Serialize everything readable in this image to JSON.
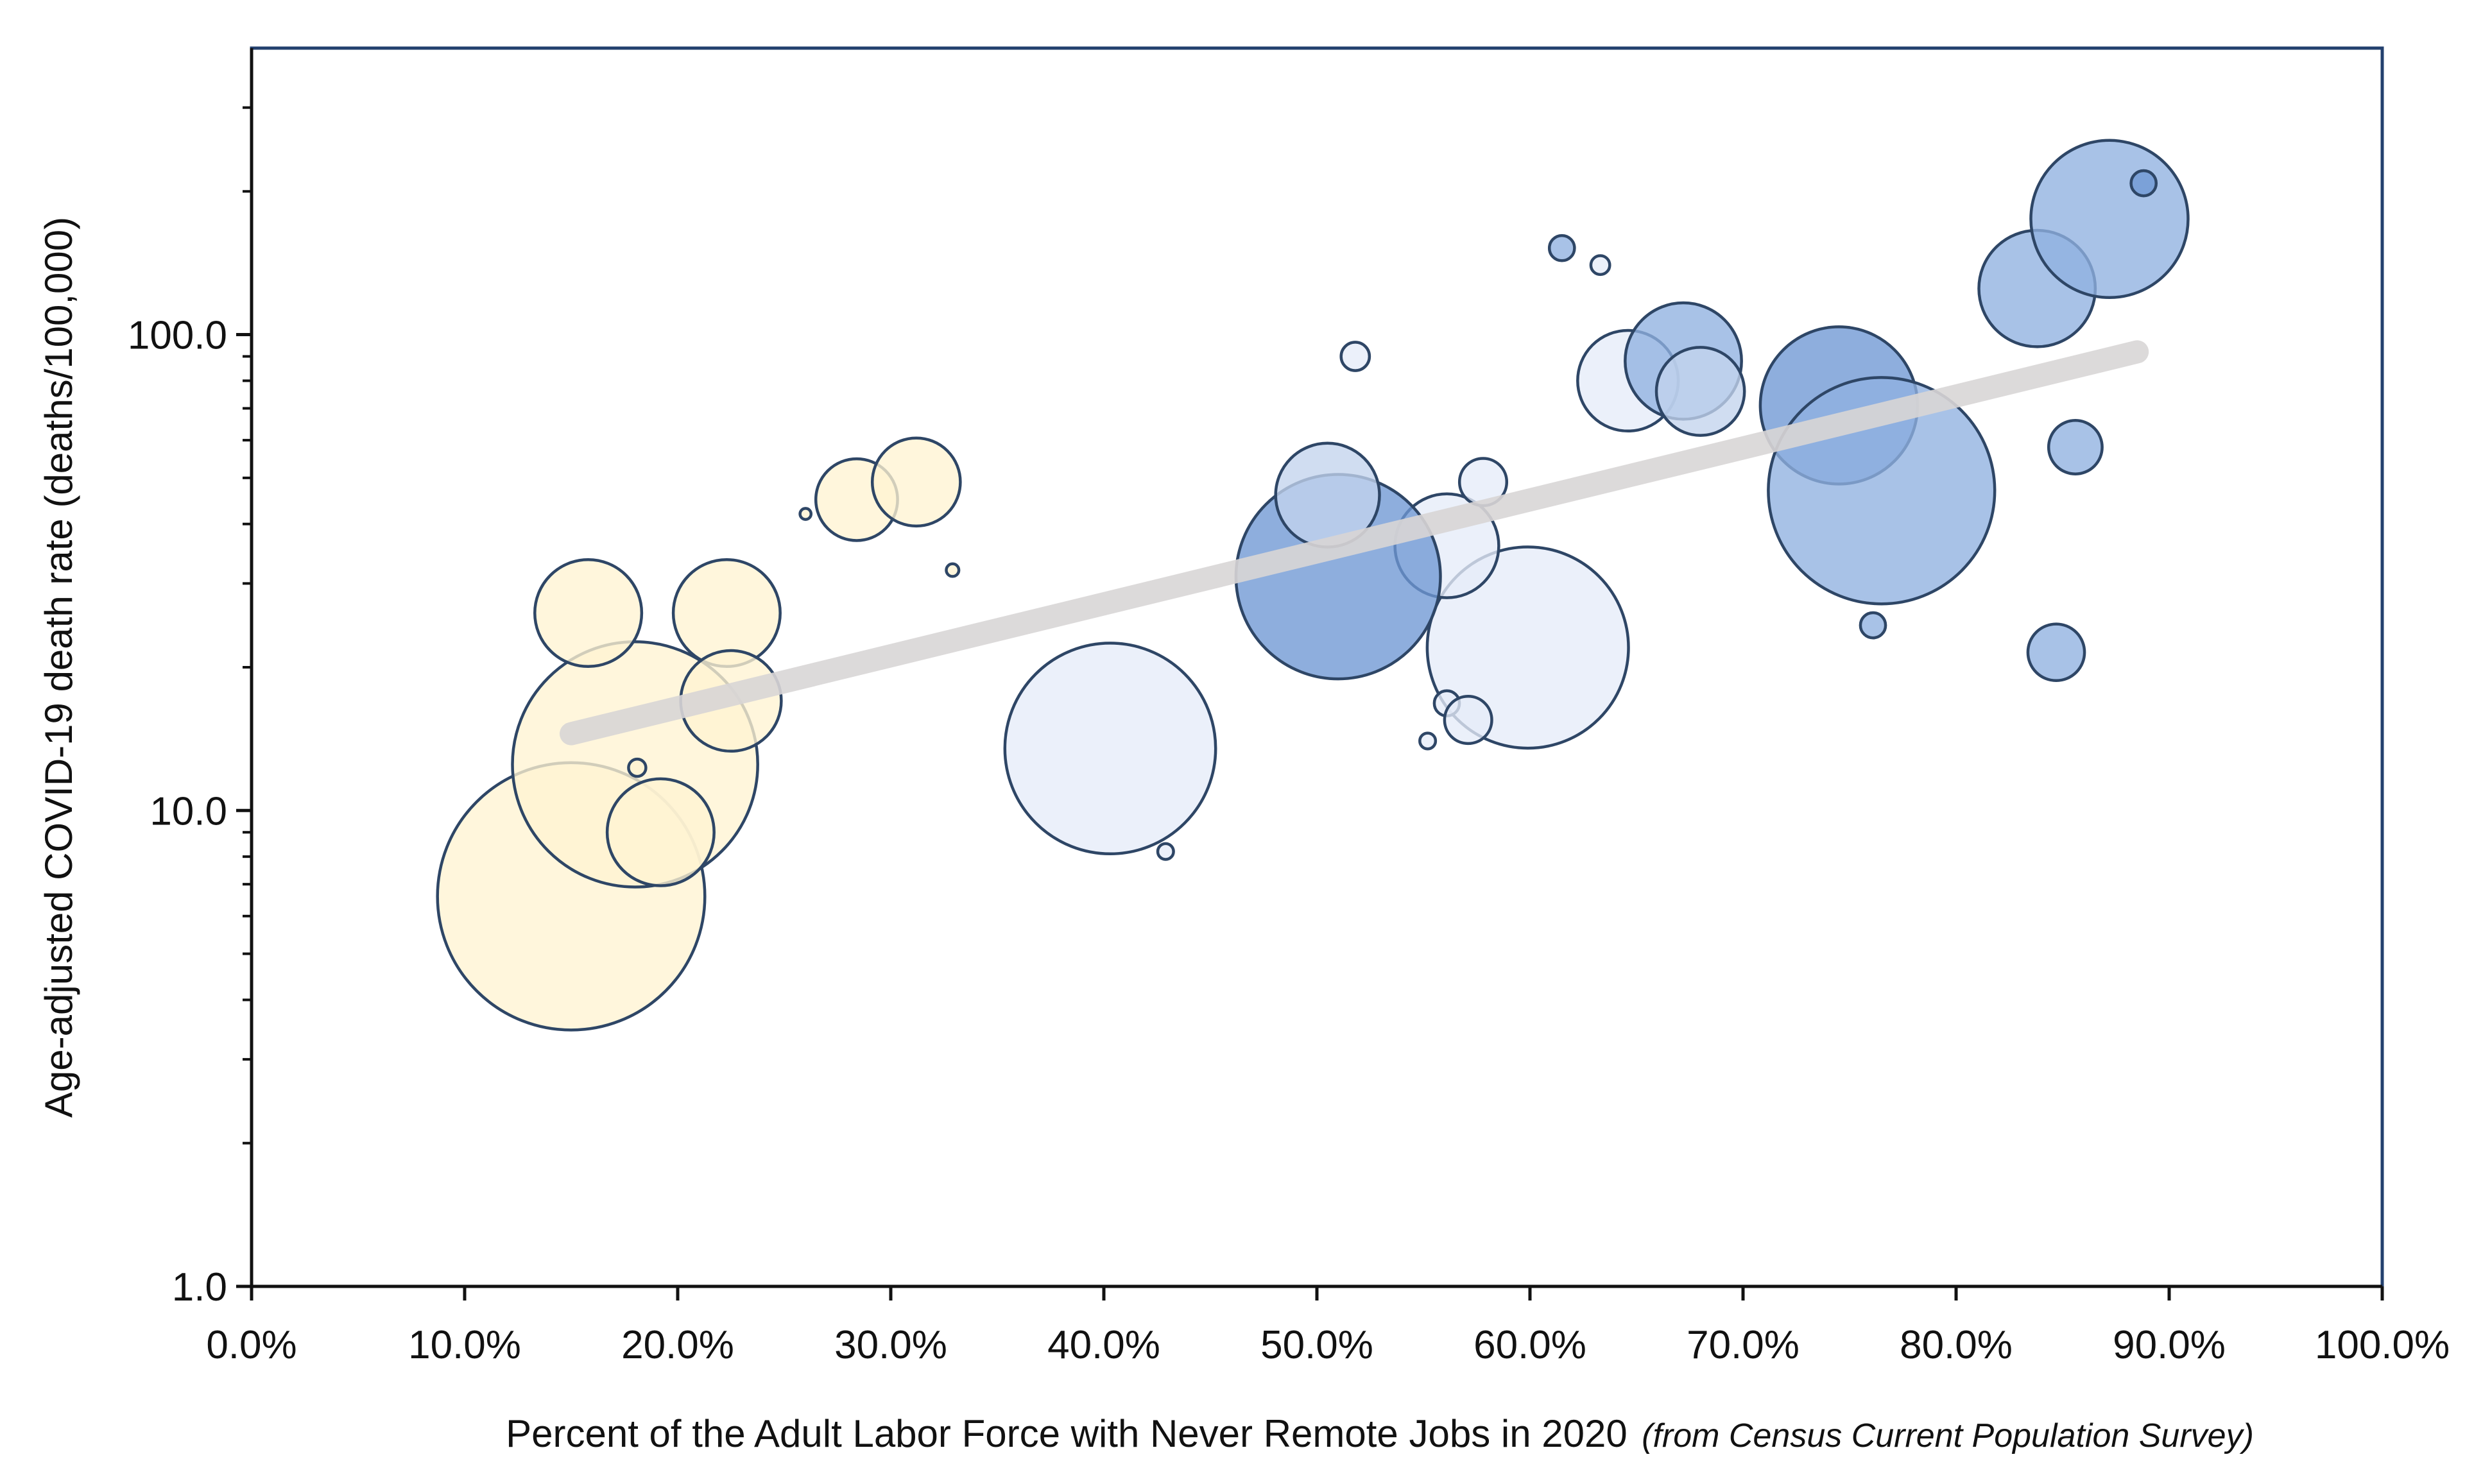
{
  "chart_data": {
    "type": "scatter",
    "subtype": "bubble",
    "title": "",
    "xlabel": "Percent of the Adult Labor Force with Never Remote Jobs in 2020",
    "xlabel_note": "(from Census Current Population Survey)",
    "ylabel": "Age-adjusted COVID-19 death rate (deaths/100,000)",
    "xlim": [
      0,
      100
    ],
    "ylim": [
      1,
      400
    ],
    "yscale": "log",
    "grid": false,
    "legend": "none",
    "x_ticks": [
      {
        "value": 0,
        "label": "0.0%"
      },
      {
        "value": 10,
        "label": "10.0%"
      },
      {
        "value": 20,
        "label": "20.0%"
      },
      {
        "value": 30,
        "label": "30.0%"
      },
      {
        "value": 40,
        "label": "40.0%"
      },
      {
        "value": 50,
        "label": "50.0%"
      },
      {
        "value": 60,
        "label": "60.0%"
      },
      {
        "value": 70,
        "label": "70.0%"
      },
      {
        "value": 80,
        "label": "80.0%"
      },
      {
        "value": 90,
        "label": "90.0%"
      },
      {
        "value": 100,
        "label": "100.0%"
      }
    ],
    "y_ticks": [
      {
        "value": 1,
        "label": "1.0"
      },
      {
        "value": 10,
        "label": "10.0"
      },
      {
        "value": 100,
        "label": "100.0"
      }
    ],
    "y_minor_ticks": [
      2,
      3,
      4,
      5,
      6,
      7,
      8,
      9,
      20,
      30,
      40,
      50,
      60,
      70,
      80,
      90,
      200,
      300
    ],
    "trendline": {
      "x": [
        15,
        88.5
      ],
      "y": [
        14.5,
        92
      ],
      "color": "#d9d6d6"
    },
    "colors": {
      "yellow": "#fff3d2",
      "pale": "#e6ecf8",
      "light": "#c3d3ed",
      "mid": "#8fb1e0",
      "dark": "#6e97d4",
      "stroke": "#2e4666",
      "axis_frame": "#23406e"
    },
    "points": [
      {
        "x": 15.0,
        "y": 6.6,
        "size": 85,
        "color": "yellow"
      },
      {
        "x": 18.0,
        "y": 12.5,
        "size": 78,
        "color": "yellow"
      },
      {
        "x": 15.8,
        "y": 26.0,
        "size": 34,
        "color": "yellow"
      },
      {
        "x": 22.3,
        "y": 26.0,
        "size": 34,
        "color": "yellow"
      },
      {
        "x": 22.5,
        "y": 17.0,
        "size": 32,
        "color": "yellow"
      },
      {
        "x": 19.2,
        "y": 9.0,
        "size": 34,
        "color": "yellow"
      },
      {
        "x": 18.1,
        "y": 12.3,
        "size": 5.5,
        "color": "yellow"
      },
      {
        "x": 28.4,
        "y": 45.0,
        "size": 26,
        "color": "yellow"
      },
      {
        "x": 31.2,
        "y": 49.0,
        "size": 28,
        "color": "yellow"
      },
      {
        "x": 26.0,
        "y": 42.0,
        "size": 3.5,
        "color": "yellow"
      },
      {
        "x": 32.9,
        "y": 32.0,
        "size": 4,
        "color": "yellow"
      },
      {
        "x": 40.3,
        "y": 13.5,
        "size": 67,
        "color": "pale"
      },
      {
        "x": 42.9,
        "y": 8.2,
        "size": 5,
        "color": "pale"
      },
      {
        "x": 59.9,
        "y": 22.0,
        "size": 64,
        "color": "pale"
      },
      {
        "x": 56.1,
        "y": 36.0,
        "size": 33,
        "color": "pale"
      },
      {
        "x": 57.8,
        "y": 49.0,
        "size": 15,
        "color": "pale"
      },
      {
        "x": 56.1,
        "y": 16.8,
        "size": 8,
        "color": "pale"
      },
      {
        "x": 57.1,
        "y": 15.5,
        "size": 15,
        "color": "pale"
      },
      {
        "x": 55.2,
        "y": 14.0,
        "size": 5,
        "color": "pale"
      },
      {
        "x": 51.8,
        "y": 90.0,
        "size": 9,
        "color": "pale"
      },
      {
        "x": 64.6,
        "y": 80.0,
        "size": 32,
        "color": "pale"
      },
      {
        "x": 63.3,
        "y": 140.0,
        "size": 6,
        "color": "pale"
      },
      {
        "x": 51.0,
        "y": 31.0,
        "size": 65,
        "color": "dark"
      },
      {
        "x": 50.5,
        "y": 46.0,
        "size": 33,
        "color": "light"
      },
      {
        "x": 61.5,
        "y": 152.0,
        "size": 8,
        "color": "mid"
      },
      {
        "x": 67.2,
        "y": 88.0,
        "size": 37,
        "color": "mid"
      },
      {
        "x": 68.0,
        "y": 76.0,
        "size": 28,
        "color": "light"
      },
      {
        "x": 74.5,
        "y": 71.0,
        "size": 50,
        "color": "dark"
      },
      {
        "x": 76.5,
        "y": 47.0,
        "size": 72,
        "color": "mid"
      },
      {
        "x": 76.1,
        "y": 24.5,
        "size": 8,
        "color": "mid"
      },
      {
        "x": 83.8,
        "y": 125.0,
        "size": 37,
        "color": "mid"
      },
      {
        "x": 87.2,
        "y": 175.0,
        "size": 50,
        "color": "mid"
      },
      {
        "x": 88.8,
        "y": 208.0,
        "size": 8,
        "color": "dark"
      },
      {
        "x": 85.6,
        "y": 58.0,
        "size": 17,
        "color": "mid"
      },
      {
        "x": 84.7,
        "y": 21.5,
        "size": 18,
        "color": "mid"
      }
    ]
  }
}
